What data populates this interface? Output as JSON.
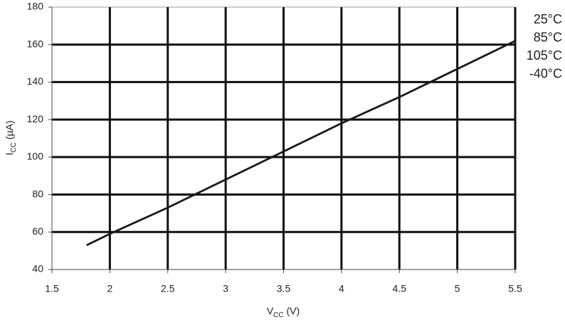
{
  "chart_data": {
    "type": "line",
    "x_label": [
      "V",
      "CC",
      " (V)"
    ],
    "y_label": [
      "I",
      "CC",
      " (µA)"
    ],
    "x": [
      1.8,
      2,
      2.5,
      3,
      3.5,
      4,
      4.5,
      5,
      5.5
    ],
    "series": [
      {
        "name": "25°C",
        "color": "#1a1a1a",
        "values": [
          53,
          59,
          73,
          88,
          103,
          118,
          132,
          147,
          162
        ]
      },
      {
        "name": "85°C",
        "color": "#1a1a1a",
        "values": [
          53,
          59,
          73,
          88,
          103,
          118,
          132,
          147,
          162
        ]
      },
      {
        "name": "105°C",
        "color": "#1a1a1a",
        "values": [
          53,
          59,
          73,
          88,
          103,
          118,
          132,
          147,
          162
        ]
      },
      {
        "name": "-40°C",
        "color": "#1a1a1a",
        "values": [
          53,
          59,
          73,
          88,
          103,
          118,
          132,
          147,
          162
        ]
      }
    ],
    "xlim": [
      1.5,
      5.5
    ],
    "xticks": [
      1.5,
      2,
      2.5,
      3,
      3.5,
      4,
      4.5,
      5,
      5.5
    ],
    "ylim": [
      40,
      180
    ],
    "yticks": [
      40,
      60,
      80,
      100,
      120,
      140,
      160,
      180
    ],
    "grid": true
  }
}
